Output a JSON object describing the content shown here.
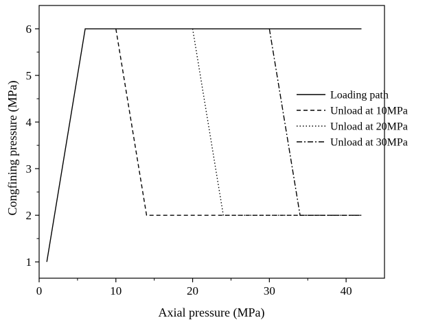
{
  "chart_data": {
    "type": "line",
    "xlabel": "Axial pressure (MPa)",
    "ylabel": "Congfining pressure (MPa)",
    "xlim": [
      0,
      45
    ],
    "ylim": [
      0.65,
      6.5
    ],
    "xticks": [
      0,
      10,
      20,
      30,
      40
    ],
    "yticks": [
      1,
      2,
      3,
      4,
      5,
      6
    ],
    "grid": false,
    "legend_position": "right",
    "colors": {
      "line": "#000000",
      "axis": "#000000",
      "background": "#ffffff"
    },
    "series": [
      {
        "name": "Loading path",
        "style": "solid",
        "x": [
          1,
          6,
          42
        ],
        "y": [
          1,
          6,
          6
        ]
      },
      {
        "name": "Unload at 10MPa",
        "style": "dashed",
        "x": [
          10,
          14,
          42
        ],
        "y": [
          6,
          2,
          2
        ]
      },
      {
        "name": "Unload at 20MPa",
        "style": "dotted",
        "x": [
          20,
          24,
          42
        ],
        "y": [
          6,
          2,
          2
        ]
      },
      {
        "name": "Unload at 30MPa",
        "style": "dashdot",
        "x": [
          30,
          34,
          42
        ],
        "y": [
          6,
          2,
          2
        ]
      }
    ]
  }
}
